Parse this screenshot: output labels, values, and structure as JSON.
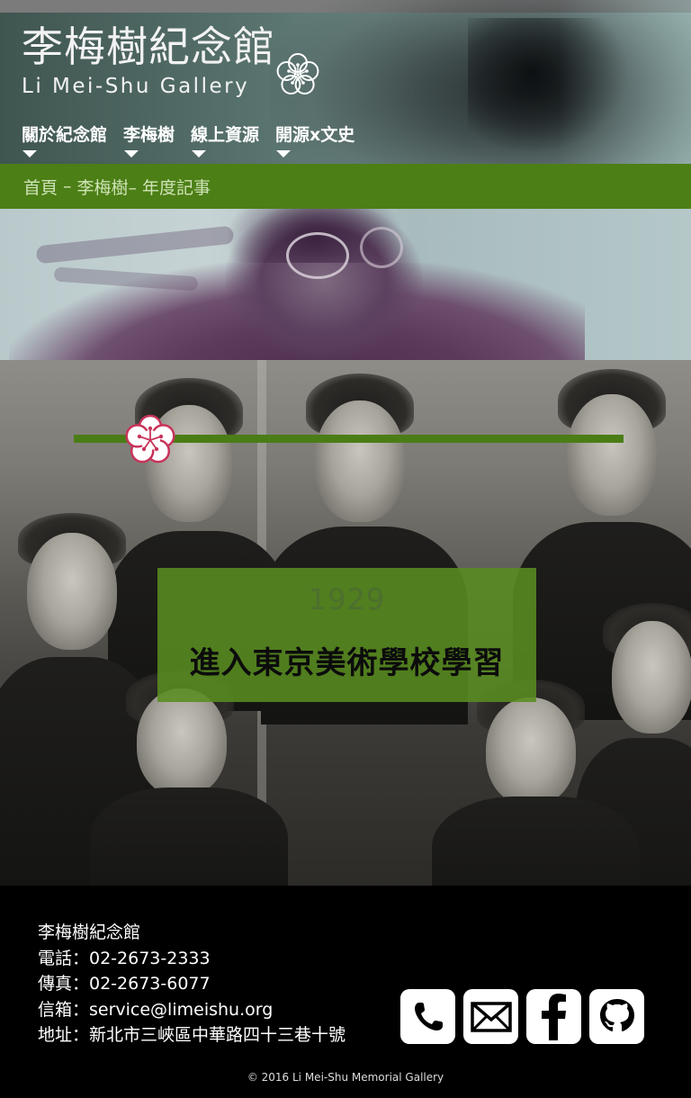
{
  "header": {
    "title_zh": "李梅樹紀念館",
    "title_en": "Li Mei-Shu Gallery",
    "nav": [
      {
        "label": "關於紀念館"
      },
      {
        "label": "李梅樹"
      },
      {
        "label": "線上資源"
      },
      {
        "label": "開源x文史"
      }
    ]
  },
  "breadcrumb": {
    "home": "首頁",
    "sep": "–",
    "section": "李梅樹–",
    "current": "年度記事"
  },
  "event": {
    "year": "1929",
    "title": "進入東京美術學校學習"
  },
  "footer": {
    "org": "李梅樹紀念館",
    "phone": "電話：02-2673-2333",
    "fax": "傳真：02-2673-6077",
    "email": "信箱：service@limeishu.org",
    "address": "地址：新北市三峽區中華路四十三巷十號",
    "social": [
      "phone-icon",
      "mail-icon",
      "facebook-icon",
      "github-icon"
    ],
    "copyright": "© 2016 Li Mei-Shu Memorial Gallery"
  },
  "colors": {
    "brand_green": "#4c7f16",
    "event_green": "#598c20",
    "flower_pink": "#c8335a",
    "footer_bg": "#000000"
  }
}
